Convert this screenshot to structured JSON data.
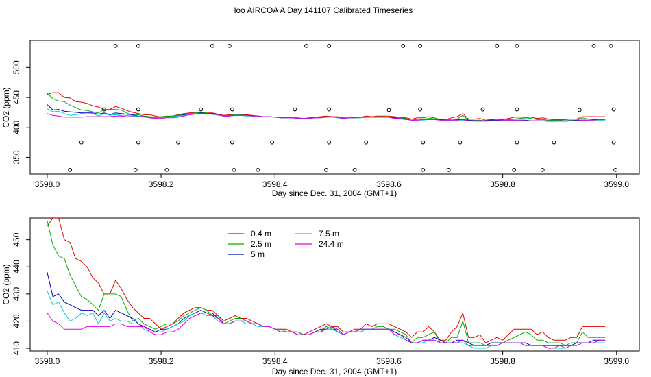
{
  "title": "loo AIRCOA A  Day 141107  Calibrated Timeseries",
  "chart_data": [
    {
      "type": "line",
      "xlabel": "Day since Dec. 31, 2004 (GMT+1)",
      "ylabel": "CO2 (ppm)",
      "xlim": [
        3597.97,
        3599.04
      ],
      "ylim": [
        322,
        545
      ],
      "xticks": [
        3598.0,
        3598.2,
        3598.4,
        3598.6,
        3598.8,
        3599.0
      ],
      "xtick_labels": [
        "3598.0",
        "3598.2",
        "3598.4",
        "3598.6",
        "3598.8",
        "3599.0"
      ],
      "yticks": [
        350,
        400,
        450,
        500
      ],
      "ytick_labels": [
        "350",
        "400",
        "450",
        "500"
      ],
      "grid": false,
      "legend": "none",
      "points_series": {
        "name": "",
        "color": "#000000",
        "x": [
          3598.04,
          3598.06,
          3598.1,
          3598.12,
          3598.155,
          3598.16,
          3598.16,
          3598.16,
          3598.21,
          3598.23,
          3598.27,
          3598.29,
          3598.32,
          3598.325,
          3598.325,
          3598.328,
          3598.37,
          3598.395,
          3598.435,
          3598.455,
          3598.49,
          3598.495,
          3598.495,
          3598.495,
          3598.54,
          3598.56,
          3598.6,
          3598.625,
          3598.655,
          3598.655,
          3598.66,
          3598.66,
          3598.705,
          3598.725,
          3598.765,
          3598.79,
          3598.82,
          3598.825,
          3598.825,
          3598.825,
          3598.87,
          3598.89,
          3598.935,
          3598.96,
          3598.99,
          3598.995,
          3598.995,
          3598.998
        ],
        "y": [
          329,
          375,
          430,
          536,
          329,
          375,
          430,
          536,
          329,
          375,
          430,
          536,
          536,
          430,
          375,
          329,
          329,
          375,
          430,
          536,
          329,
          375,
          430,
          536,
          329,
          375,
          429,
          536,
          536,
          430,
          375,
          329,
          329,
          375,
          430,
          536,
          329,
          375,
          430,
          536,
          329,
          375,
          429,
          536,
          536,
          430,
          375,
          329
        ]
      }
    },
    {
      "type": "line",
      "xlabel": "Day since Dec. 31, 2004 (GMT+1)",
      "ylabel": "CO2 (ppm)",
      "xlim": [
        3597.97,
        3599.04
      ],
      "ylim": [
        409,
        458
      ],
      "xticks": [
        3598.0,
        3598.2,
        3598.4,
        3598.6,
        3598.8,
        3599.0
      ],
      "xtick_labels": [
        "3598.0",
        "3598.2",
        "3598.4",
        "3598.6",
        "3598.8",
        "3599.0"
      ],
      "yticks": [
        410,
        420,
        430,
        440,
        450
      ],
      "ytick_labels": [
        "410",
        "420",
        "430",
        "440",
        "450"
      ],
      "grid": false,
      "legend": "top-left",
      "x": [
        3598.0,
        3598.01,
        3598.02,
        3598.03,
        3598.04,
        3598.05,
        3598.06,
        3598.07,
        3598.08,
        3598.09,
        3598.1,
        3598.11,
        3598.12,
        3598.13,
        3598.14,
        3598.15,
        3598.16,
        3598.17,
        3598.18,
        3598.19,
        3598.2,
        3598.21,
        3598.22,
        3598.23,
        3598.24,
        3598.25,
        3598.26,
        3598.27,
        3598.28,
        3598.29,
        3598.3,
        3598.31,
        3598.32,
        3598.33,
        3598.34,
        3598.35,
        3598.36,
        3598.37,
        3598.38,
        3598.39,
        3598.4,
        3598.41,
        3598.42,
        3598.43,
        3598.44,
        3598.45,
        3598.46,
        3598.47,
        3598.48,
        3598.49,
        3598.5,
        3598.51,
        3598.52,
        3598.53,
        3598.54,
        3598.55,
        3598.56,
        3598.57,
        3598.58,
        3598.59,
        3598.6,
        3598.61,
        3598.62,
        3598.63,
        3598.64,
        3598.65,
        3598.66,
        3598.67,
        3598.68,
        3598.69,
        3598.7,
        3598.71,
        3598.72,
        3598.73,
        3598.74,
        3598.75,
        3598.76,
        3598.77,
        3598.78,
        3598.79,
        3598.8,
        3598.81,
        3598.82,
        3598.83,
        3598.84,
        3598.85,
        3598.86,
        3598.87,
        3598.88,
        3598.89,
        3598.9,
        3598.91,
        3598.92,
        3598.93,
        3598.94,
        3598.95,
        3598.96,
        3598.97,
        3598.98
      ],
      "series": [
        {
          "name": "0.4 m",
          "color": "#e00000",
          "values": [
            455,
            458,
            458,
            450,
            449,
            443,
            442,
            440,
            436,
            434,
            430,
            430,
            435,
            432,
            428,
            425,
            423,
            421,
            421,
            419,
            417,
            418,
            419,
            421,
            423,
            424,
            425,
            425,
            424,
            424,
            422,
            420,
            421,
            422,
            421,
            421,
            420,
            419,
            418,
            418,
            417,
            417,
            417,
            416,
            416,
            415,
            416,
            417,
            418,
            419,
            418,
            418,
            416,
            416,
            417,
            417,
            419,
            418,
            419,
            419,
            419,
            418,
            417,
            416,
            414,
            416,
            416,
            418,
            416,
            413,
            413,
            416,
            418,
            423,
            414,
            414,
            415,
            412,
            413,
            414,
            413,
            415,
            417,
            417,
            417,
            417,
            415,
            416,
            414,
            413,
            413,
            413,
            414,
            414,
            418,
            418,
            418,
            418,
            418
          ]
        },
        {
          "name": "2.5 m",
          "color": "#00b000",
          "values": [
            457,
            448,
            444,
            443,
            437,
            433,
            429,
            428,
            426,
            424,
            430,
            430,
            430,
            429,
            424,
            420,
            421,
            419,
            418,
            417,
            418,
            419,
            419,
            420,
            422,
            423,
            424,
            425,
            424,
            422,
            422,
            419,
            420,
            421,
            421,
            420,
            419,
            419,
            418,
            418,
            417,
            417,
            416,
            416,
            416,
            415,
            415,
            416,
            416,
            418,
            417,
            417,
            415,
            416,
            416,
            416,
            417,
            417,
            418,
            418,
            417,
            417,
            416,
            415,
            412,
            414,
            414,
            415,
            416,
            412,
            412,
            414,
            414,
            420,
            412,
            412,
            412,
            411,
            412,
            412,
            412,
            413,
            414,
            415,
            416,
            415,
            413,
            413,
            412,
            412,
            412,
            411,
            412,
            412,
            416,
            414,
            414,
            414,
            414
          ]
        },
        {
          "name": "5 m",
          "color": "#0000c8",
          "values": [
            438,
            429,
            430,
            427,
            426,
            425,
            424,
            424,
            424,
            422,
            424,
            421,
            424,
            423,
            422,
            421,
            419,
            418,
            417,
            416,
            417,
            417,
            418,
            419,
            421,
            422,
            423,
            424,
            423,
            423,
            421,
            419,
            419,
            420,
            420,
            420,
            419,
            419,
            418,
            418,
            417,
            416,
            416,
            416,
            415,
            415,
            415,
            416,
            417,
            417,
            418,
            416,
            415,
            416,
            416,
            417,
            417,
            417,
            417,
            417,
            417,
            416,
            415,
            414,
            412,
            412,
            413,
            413,
            414,
            413,
            412,
            412,
            413,
            413,
            412,
            411,
            411,
            411,
            412,
            412,
            412,
            412,
            412,
            412,
            412,
            411,
            411,
            411,
            411,
            411,
            411,
            411,
            411,
            412,
            412,
            412,
            413,
            413,
            413
          ]
        },
        {
          "name": "7.5 m",
          "color": "#00d0d0",
          "values": [
            431,
            426,
            427,
            423,
            420,
            421,
            423,
            422,
            423,
            419,
            423,
            420,
            421,
            420,
            420,
            419,
            419,
            417,
            416,
            416,
            416,
            417,
            418,
            419,
            420,
            422,
            423,
            423,
            422,
            422,
            420,
            419,
            419,
            420,
            420,
            419,
            419,
            418,
            418,
            418,
            417,
            416,
            416,
            416,
            415,
            415,
            415,
            416,
            416,
            417,
            417,
            416,
            415,
            416,
            416,
            416,
            417,
            417,
            417,
            417,
            417,
            415,
            414,
            413,
            412,
            412,
            412,
            413,
            413,
            412,
            412,
            412,
            412,
            412,
            411,
            410,
            410,
            410,
            411,
            411,
            412,
            412,
            412,
            412,
            411,
            411,
            411,
            411,
            410,
            410,
            410,
            410,
            411,
            411,
            412,
            412,
            412,
            412,
            412
          ]
        },
        {
          "name": "24.4 m",
          "color": "#e000e0",
          "values": [
            423,
            420,
            419,
            417,
            417,
            417,
            417,
            418,
            418,
            418,
            418,
            418,
            419,
            419,
            418,
            418,
            418,
            418,
            416,
            415,
            415,
            416,
            416,
            417,
            419,
            421,
            422,
            423,
            423,
            422,
            421,
            419,
            419,
            420,
            420,
            420,
            419,
            419,
            418,
            418,
            417,
            416,
            416,
            416,
            415,
            415,
            415,
            416,
            416,
            417,
            418,
            417,
            415,
            416,
            416,
            417,
            417,
            417,
            417,
            417,
            417,
            415,
            415,
            413,
            412,
            412,
            413,
            413,
            413,
            412,
            412,
            412,
            412,
            413,
            411,
            411,
            411,
            411,
            411,
            411,
            412,
            412,
            412,
            412,
            411,
            411,
            411,
            411,
            410,
            410,
            411,
            410,
            411,
            411,
            412,
            412,
            412,
            413,
            413
          ]
        }
      ]
    }
  ]
}
